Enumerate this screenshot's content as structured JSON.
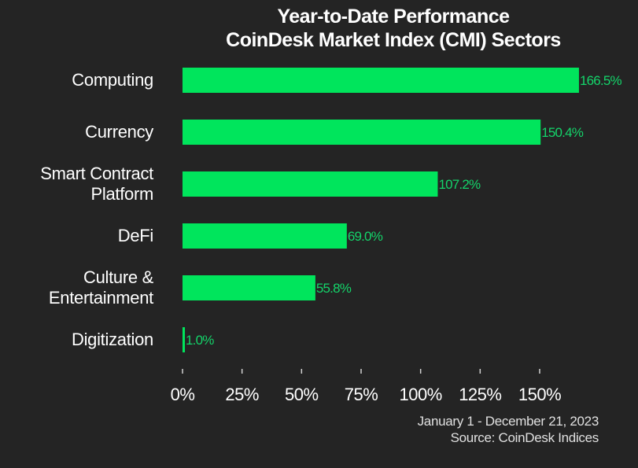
{
  "chart_data": {
    "type": "bar",
    "orientation": "horizontal",
    "title": "Year-to-Date Performance",
    "subtitle": "CoinDesk Market Index (CMI) Sectors",
    "categories": [
      [
        "Computing"
      ],
      [
        "Currency"
      ],
      [
        "Smart Contract",
        "Platform"
      ],
      [
        "DeFi"
      ],
      [
        "Culture &",
        "Entertainment"
      ],
      [
        "Digitization"
      ]
    ],
    "values": [
      166.5,
      150.4,
      107.2,
      69.0,
      55.8,
      1.0
    ],
    "value_labels": [
      "166.5%",
      "150.4%",
      "107.2%",
      "69.0%",
      "55.8%",
      "1.0%"
    ],
    "xticks": [
      0,
      25,
      50,
      75,
      100,
      125,
      150
    ],
    "xtick_labels": [
      "0%",
      "25%",
      "50%",
      "75%",
      "100%",
      "125%",
      "150%"
    ],
    "xlim": [
      0,
      170
    ],
    "xlabel": "",
    "ylabel": "",
    "grid": false,
    "legend": "none",
    "bar_color": "#00e55c",
    "label_color": "#14d46a",
    "footnote": "January 1 - December 21, 2023",
    "source": "Source: CoinDesk Indices"
  }
}
